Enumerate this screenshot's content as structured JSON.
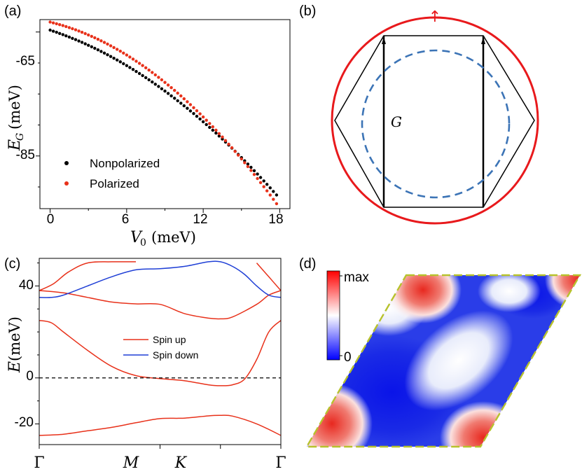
{
  "panels": {
    "a": "(a)",
    "b": "(b)",
    "c": "(c)",
    "d": "(d)"
  },
  "chart_data": [
    {
      "type": "scatter",
      "panel": "(a)",
      "xlabel": {
        "symbol": "V",
        "sub": "0",
        "unit": "(meV)"
      },
      "ylabel": {
        "symbol": "E",
        "sub": "G",
        "unit": "(meV)"
      },
      "xlim": [
        -0.8,
        18.8
      ],
      "ylim": [
        -93.5,
        -63
      ],
      "xticks": [
        0,
        6,
        12,
        18
      ],
      "yticks": [
        -65,
        -85
      ],
      "legend_position": "lower-left",
      "series": [
        {
          "name": "Nonpolarized",
          "color": "#000000",
          "y0": -64.7,
          "y_end": -91.3
        },
        {
          "name": "Polarized",
          "color": "#e8311a",
          "y0": -63.4,
          "y_end": -92.7
        }
      ],
      "x_samples": {
        "start": 0,
        "end": 17.75,
        "count": 72
      }
    },
    {
      "type": "diagram",
      "panel": "(b)",
      "label": "G",
      "arrow": "↑"
    },
    {
      "type": "line",
      "panel": "(c)",
      "ylabel": {
        "symbol": "E",
        "unit": "(meV)"
      },
      "ylim": [
        -29,
        52
      ],
      "yticks": [
        -20,
        0,
        40
      ],
      "xticks": [
        "Γ",
        "M",
        "K",
        "Γ"
      ],
      "xtick_pos": [
        0,
        0.5,
        0.75,
        1.0
      ],
      "fermi_level": 0,
      "legend": [
        {
          "name": "Spin up",
          "color": "#e8311a"
        },
        {
          "name": "Spin down",
          "color": "#1f3fd6"
        }
      ],
      "bands": [
        {
          "spin": "up",
          "points": [
            [
              0,
              -25
            ],
            [
              0.1,
              -24.5
            ],
            [
              0.2,
              -23
            ],
            [
              0.3,
              -21.5
            ],
            [
              0.4,
              -19.5
            ],
            [
              0.5,
              -17.7
            ],
            [
              0.6,
              -17.5
            ],
            [
              0.7,
              -16.5
            ],
            [
              0.75,
              -16.3
            ],
            [
              0.8,
              -16.6
            ],
            [
              0.9,
              -20
            ],
            [
              1.0,
              -25
            ]
          ]
        },
        {
          "spin": "up",
          "points": [
            [
              0,
              25
            ],
            [
              0.05,
              24
            ],
            [
              0.1,
              20
            ],
            [
              0.2,
              12
            ],
            [
              0.3,
              5
            ],
            [
              0.4,
              1
            ],
            [
              0.5,
              -0.3
            ],
            [
              0.6,
              -1.2
            ],
            [
              0.7,
              -3
            ],
            [
              0.75,
              -3.4
            ],
            [
              0.8,
              -3
            ],
            [
              0.85,
              -0.5
            ],
            [
              0.9,
              8
            ],
            [
              0.95,
              20
            ],
            [
              1.0,
              25
            ]
          ]
        },
        {
          "spin": "up",
          "points": [
            [
              0,
              38
            ],
            [
              0.1,
              37
            ],
            [
              0.2,
              35
            ],
            [
              0.3,
              33
            ],
            [
              0.4,
              32.2
            ],
            [
              0.5,
              32
            ],
            [
              0.6,
              28
            ],
            [
              0.7,
              26
            ],
            [
              0.75,
              25.7
            ],
            [
              0.8,
              26.5
            ],
            [
              0.9,
              32
            ],
            [
              0.95,
              36
            ],
            [
              1.0,
              38
            ]
          ]
        },
        {
          "spin": "up",
          "points": [
            [
              0,
              38
            ],
            [
              0.06,
              41
            ],
            [
              0.12,
              46
            ],
            [
              0.2,
              50
            ],
            [
              0.3,
              50.5
            ],
            [
              0.4,
              50.5
            ]
          ]
        },
        {
          "spin": "up",
          "points": [
            [
              0.9,
              50
            ],
            [
              0.95,
              44
            ],
            [
              1.0,
              38
            ]
          ]
        },
        {
          "spin": "down",
          "points": [
            [
              0,
              35
            ],
            [
              0.05,
              35
            ],
            [
              0.1,
              36
            ],
            [
              0.2,
              40
            ],
            [
              0.3,
              44
            ],
            [
              0.4,
              47
            ],
            [
              0.5,
              47.5
            ],
            [
              0.6,
              48.5
            ],
            [
              0.7,
              50.5
            ],
            [
              0.75,
              50.5
            ],
            [
              0.8,
              48.5
            ],
            [
              0.85,
              45
            ],
            [
              0.9,
              40
            ],
            [
              0.95,
              36
            ],
            [
              1.0,
              35
            ]
          ]
        }
      ]
    },
    {
      "type": "heatmap",
      "panel": "(d)",
      "colorbar": {
        "max_label": "max",
        "min_label": "0",
        "colors": [
          "#0000ff",
          "#ffffff",
          "#ff0000"
        ]
      },
      "hot_spots": [
        "top-left",
        "top-right",
        "bottom-left",
        "bottom-right"
      ]
    }
  ]
}
